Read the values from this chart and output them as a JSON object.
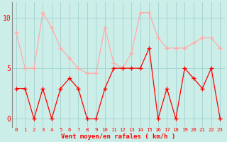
{
  "x": [
    0,
    1,
    2,
    3,
    4,
    5,
    6,
    7,
    8,
    9,
    10,
    11,
    12,
    13,
    14,
    15,
    16,
    17,
    18,
    19,
    20,
    21,
    22,
    23
  ],
  "wind_avg": [
    3,
    3,
    0,
    3,
    0,
    3,
    4,
    3,
    0,
    0,
    3,
    5,
    5,
    5,
    5,
    7,
    0,
    3,
    0,
    5,
    4,
    3,
    5,
    0
  ],
  "wind_gust": [
    8.5,
    5,
    5,
    10.5,
    9,
    7,
    6,
    5,
    4.5,
    4.5,
    9,
    5.5,
    5,
    6.5,
    10.5,
    10.5,
    8,
    7,
    7,
    7,
    7.5,
    8,
    8,
    7
  ],
  "bg_color": "#cceee8",
  "line_avg_color": "#ff0000",
  "line_gust_color": "#ffaaaa",
  "grid_color": "#99cccc",
  "xlabel": "Vent moyen/en rafales ( km/h )",
  "tick_color": "#ff0000",
  "yticks": [
    0,
    5,
    10
  ],
  "ylim": [
    -0.8,
    11.5
  ],
  "xlim": [
    -0.5,
    23.5
  ],
  "figwidth": 3.2,
  "figheight": 2.0,
  "dpi": 100
}
